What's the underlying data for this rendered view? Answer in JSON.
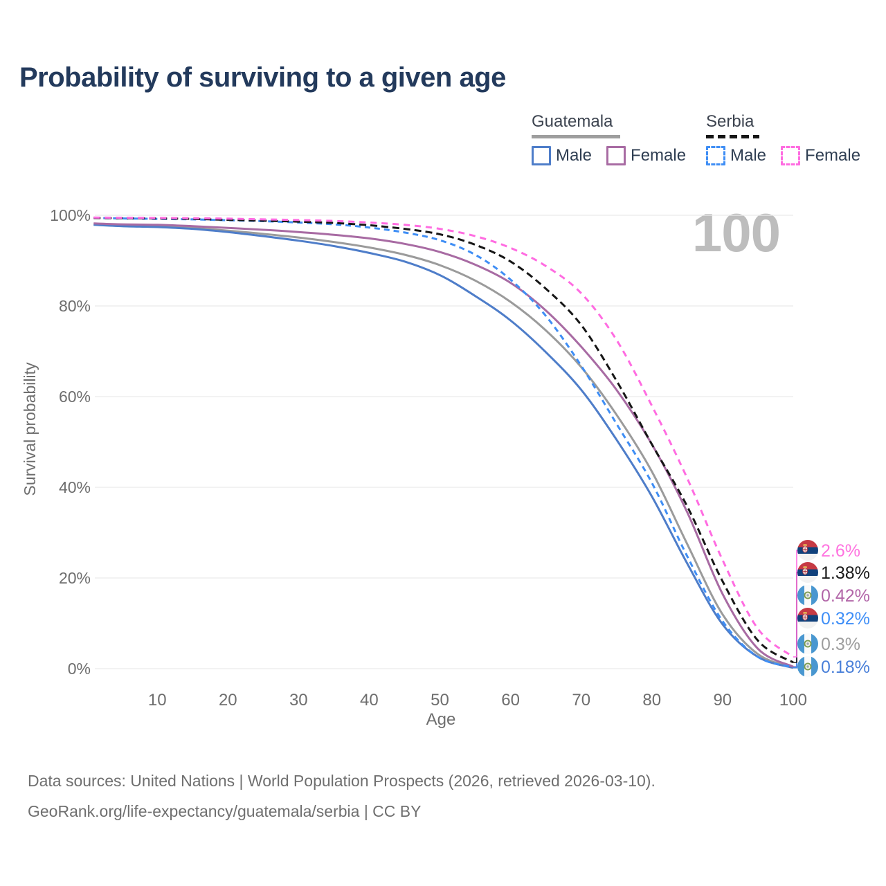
{
  "title": "Probability of surviving to a given age",
  "watermark": "100",
  "legend": {
    "groups": [
      {
        "label": "Guatemala",
        "line_style": "solid",
        "line_color": "#9e9e9e",
        "items": [
          {
            "label": "Male",
            "color": "#4e7dc9",
            "box_style": "solid"
          },
          {
            "label": "Female",
            "color": "#a86ba3",
            "box_style": "solid"
          }
        ]
      },
      {
        "label": "Serbia",
        "line_style": "dashed",
        "line_color": "#161616",
        "items": [
          {
            "label": "Male",
            "color": "#3f8ef5",
            "box_style": "dashed"
          },
          {
            "label": "Female",
            "color": "#ff6ce1",
            "box_style": "dashed"
          }
        ]
      }
    ]
  },
  "chart_data": {
    "type": "line",
    "title": "Probability of surviving to a given age",
    "xlabel": "Age",
    "ylabel": "Survival probability",
    "xlim": [
      0,
      100
    ],
    "ylim": [
      0,
      100
    ],
    "grid": true,
    "legend_position": "top-right",
    "x_ticks": [
      10,
      20,
      30,
      40,
      50,
      60,
      70,
      80,
      90,
      100
    ],
    "y_ticks": [
      {
        "label": "0%",
        "value": 0
      },
      {
        "label": "20%",
        "value": 20
      },
      {
        "label": "40%",
        "value": 40
      },
      {
        "label": "60%",
        "value": 60
      },
      {
        "label": "80%",
        "value": 80
      },
      {
        "label": "100%",
        "value": 100
      }
    ],
    "ages": [
      1,
      5,
      10,
      15,
      20,
      25,
      30,
      35,
      40,
      45,
      50,
      55,
      60,
      65,
      70,
      75,
      80,
      85,
      90,
      95,
      100
    ],
    "series": [
      {
        "name": "Guatemala (both sexes)",
        "country": "Guatemala",
        "sex": "both",
        "color": "#9b9b9b",
        "line": "solid",
        "dash_pattern": null,
        "end_label": "0.3%",
        "end_label_color": "#9e9e9e",
        "flag": "guatemala",
        "label_row": 4,
        "values": [
          98.0,
          97.8,
          97.6,
          97.2,
          96.6,
          95.9,
          95.1,
          94.1,
          92.9,
          91.3,
          89.0,
          85.6,
          80.9,
          74.6,
          66.5,
          56.0,
          43.5,
          27.5,
          12.0,
          3.2,
          0.3
        ]
      },
      {
        "name": "Guatemala Male",
        "country": "Guatemala",
        "sex": "male",
        "color": "#4e7dc9",
        "line": "solid",
        "dash_pattern": null,
        "end_label": "0.18%",
        "end_label_color": "#4a80d9",
        "flag": "guatemala",
        "label_row": 5,
        "values": [
          97.9,
          97.6,
          97.4,
          97.0,
          96.3,
          95.4,
          94.4,
          93.2,
          91.7,
          89.8,
          86.8,
          82.2,
          76.8,
          69.8,
          61.5,
          50.5,
          38.0,
          23.2,
          9.8,
          2.6,
          0.18
        ]
      },
      {
        "name": "Guatemala Female",
        "country": "Guatemala",
        "sex": "female",
        "color": "#a86ba3",
        "line": "solid",
        "dash_pattern": null,
        "end_label": "0.42%",
        "end_label_color": "#b266a8",
        "flag": "guatemala",
        "label_row": 2,
        "values": [
          98.2,
          98.0,
          97.9,
          97.6,
          97.2,
          96.8,
          96.3,
          95.7,
          94.9,
          93.7,
          91.9,
          89.1,
          85.1,
          79.0,
          71.0,
          61.5,
          49.5,
          34.5,
          16.5,
          4.4,
          0.42
        ]
      },
      {
        "name": "Serbia Male",
        "country": "Serbia",
        "sex": "male",
        "color": "#3f8ef5",
        "line": "dashed",
        "dash_pattern": "8 6",
        "end_label": "0.32%",
        "end_label_color": "#3e8ef7",
        "flag": "serbia",
        "label_row": 3,
        "values": [
          99.4,
          99.3,
          99.2,
          99.1,
          98.9,
          98.7,
          98.4,
          98.0,
          97.3,
          96.2,
          94.5,
          91.3,
          85.8,
          77.8,
          66.8,
          54.0,
          41.0,
          24.8,
          10.5,
          2.6,
          0.32
        ]
      },
      {
        "name": "Serbia (both sexes)",
        "country": "Serbia",
        "sex": "both",
        "color": "#161616",
        "line": "dashed",
        "dash_pattern": "10 6",
        "end_label": "1.38%",
        "end_label_color": "#1a1a1a",
        "flag": "serbia",
        "label_row": 1,
        "values": [
          99.4,
          99.35,
          99.3,
          99.2,
          99.0,
          98.8,
          98.6,
          98.3,
          97.8,
          97.0,
          95.8,
          93.5,
          89.8,
          83.8,
          75.8,
          63.5,
          49.5,
          35.8,
          19.3,
          6.2,
          1.38
        ]
      },
      {
        "name": "Serbia Female",
        "country": "Serbia",
        "sex": "female",
        "color": "#ff6ce1",
        "line": "dashed",
        "dash_pattern": "9 7",
        "end_label": "2.6%",
        "end_label_color": "#ff74e0",
        "flag": "serbia",
        "label_row": 0,
        "values": [
          99.5,
          99.45,
          99.4,
          99.35,
          99.25,
          99.1,
          98.95,
          98.75,
          98.4,
          97.9,
          97.0,
          95.4,
          92.8,
          88.8,
          82.8,
          72.5,
          58.0,
          42.0,
          24.0,
          8.8,
          2.6
        ]
      }
    ]
  },
  "footer": {
    "line1": "Data sources: United Nations | World Population Prospects (2026, retrieved 2026-03-10).",
    "line2": "GeoRank.org/life-expectancy/guatemala/serbia | CC BY"
  }
}
